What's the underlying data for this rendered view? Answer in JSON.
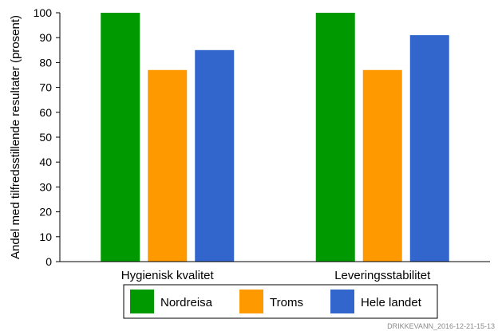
{
  "chart_data": {
    "type": "bar",
    "title": "",
    "xlabel": "",
    "ylabel": "Andel med tilfredsstillende resultater (prosent)",
    "ylim": [
      0,
      100
    ],
    "yticks": [
      0,
      10,
      20,
      30,
      40,
      50,
      60,
      70,
      80,
      90,
      100
    ],
    "categories": [
      "Hygienisk kvalitet",
      "Leveringsstabilitet"
    ],
    "series": [
      {
        "name": "Nordreisa",
        "color": "#009900",
        "values": [
          100,
          100
        ]
      },
      {
        "name": "Troms",
        "color": "#ff9900",
        "values": [
          77,
          77
        ]
      },
      {
        "name": "Hele landet",
        "color": "#3366cc",
        "values": [
          85,
          91
        ]
      }
    ],
    "grid": false,
    "legend_position": "bottom"
  },
  "footer": {
    "stamp": "DRIKKEVANN_2016-12-21-15-13"
  }
}
